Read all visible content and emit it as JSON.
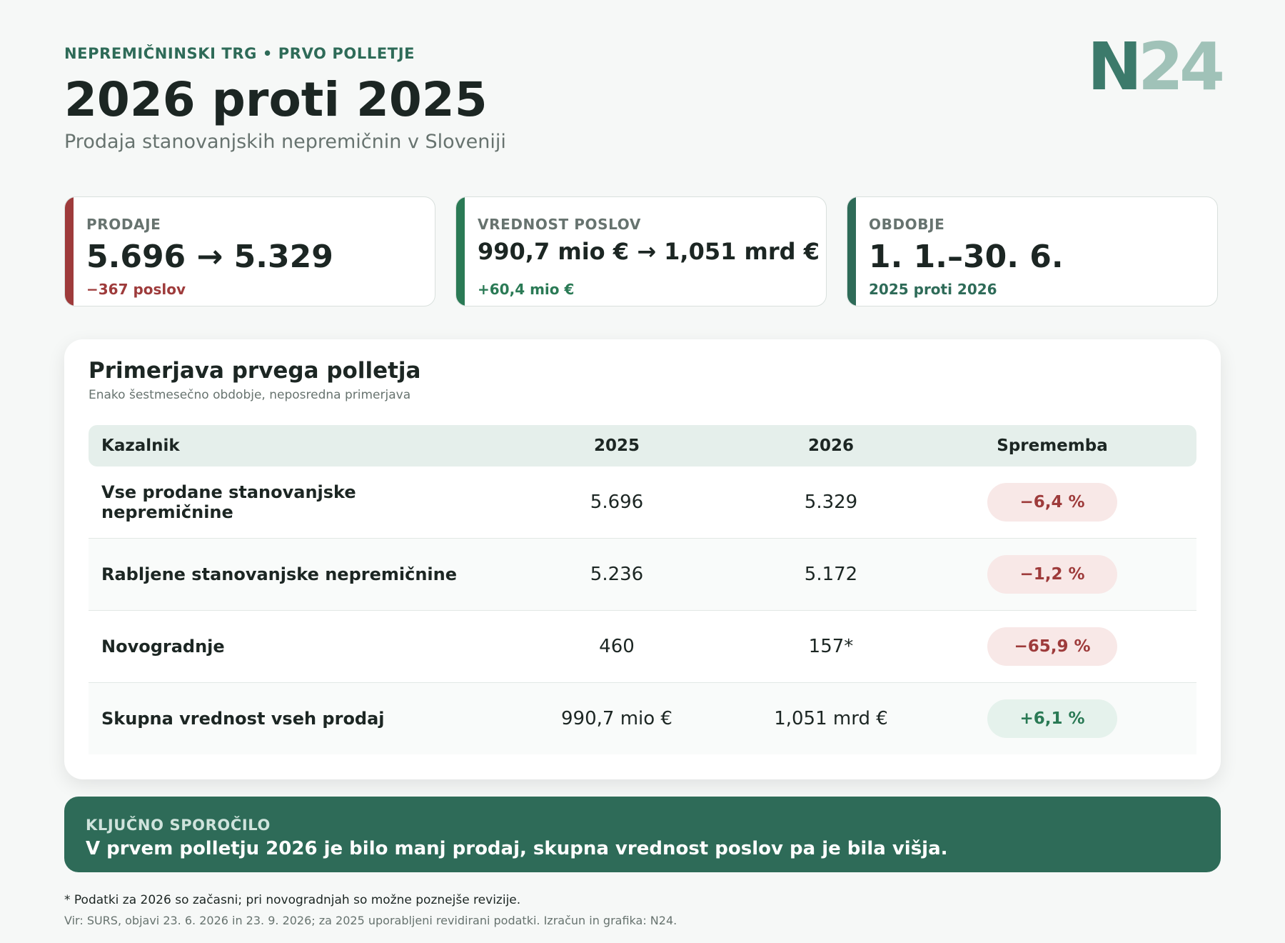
{
  "header": {
    "kicker": "NEPREMIČNINSKI TRG • PRVO POLLETJE",
    "title": "2026 proti 2025",
    "subtitle": "Prodaja stanovanjskih nepremičnin v Sloveniji",
    "logo_n": "N",
    "logo_num": "24"
  },
  "cards": [
    {
      "label": "PRODAJE",
      "value": "5.696 → 5.329",
      "delta": "−367 poslov",
      "accent": "#9e3b3b"
    },
    {
      "label": "VREDNOST POSLOV",
      "value": "990,7 mio € → 1,051 mrd €",
      "delta": "+60,4 mio €",
      "accent": "#2a7a55"
    },
    {
      "label": "OBDOBJE",
      "value": "1. 1.–30. 6.",
      "delta": "2025 proti 2026",
      "accent": "#2e6b58"
    }
  ],
  "comparison": {
    "title": "Primerjava prvega polletja",
    "subtitle": "Enako šestmesečno obdobje, neposredna primerjava",
    "headers": {
      "indicator": "Kazalnik",
      "year1": "2025",
      "year2": "2026",
      "change": "Sprememba"
    },
    "rows": [
      {
        "indicator": "Vse prodane stanovanjske nepremičnine",
        "y2025": "5.696",
        "y2026": "5.329",
        "change": "−6,4 %",
        "direction": "negative"
      },
      {
        "indicator": "Rabljene stanovanjske nepremičnine",
        "y2025": "5.236",
        "y2026": "5.172",
        "change": "−1,2 %",
        "direction": "negative"
      },
      {
        "indicator": "Novogradnje",
        "y2025": "460",
        "y2026": "157*",
        "change": "−65,9 %",
        "direction": "negative"
      },
      {
        "indicator": "Skupna vrednost vseh prodaj",
        "y2025": "990,7 mio €",
        "y2026": "1,051 mrd €",
        "change": "+6,1 %",
        "direction": "positive"
      }
    ]
  },
  "key_message": {
    "label": "KLJUČNO SPOROČILO",
    "text": "V prvem polletju 2026 je bilo manj prodaj, skupna vrednost poslov pa je bila višja."
  },
  "footer": {
    "footnote": "* Podatki za 2026 so začasni; pri novogradnjah so možne poznejše revizije.",
    "source": "Vir: SURS, objavi 23. 6. 2026 in 23. 9. 2026; za 2025 uporabljeni revidirani podatki. Izračun in grafika: N24."
  },
  "colors": {
    "negative": "#9e3b3b",
    "positive": "#2a7a55",
    "brand": "#2e6b58"
  }
}
